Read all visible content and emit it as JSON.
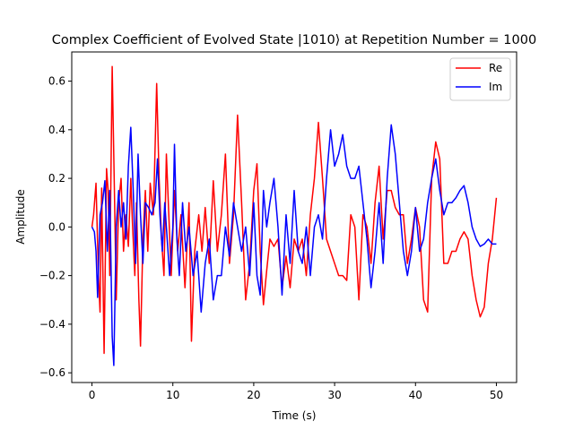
{
  "chart_data": {
    "type": "line",
    "title": "Complex Coefficient of Evolved State |1010⟩ at Repetition Number = 1000",
    "xlabel": "Time (s)",
    "ylabel": "Amplitude",
    "xlim": [
      -2.5,
      52.5
    ],
    "ylim": [
      -0.64,
      0.72
    ],
    "xticks": [
      0,
      10,
      20,
      30,
      40,
      50
    ],
    "xtick_labels": [
      "0",
      "10",
      "20",
      "30",
      "40",
      "50"
    ],
    "yticks": [
      -0.6,
      -0.4,
      -0.2,
      0.0,
      0.2,
      0.4,
      0.6
    ],
    "ytick_labels": [
      "−0.6",
      "−0.4",
      "−0.2",
      "0.0",
      "0.2",
      "0.4",
      "0.6"
    ],
    "grid": false,
    "legend_position": "upper right",
    "series": [
      {
        "name": "Re",
        "color": "#ff0000",
        "points": [
          [
            0,
            0.0
          ],
          [
            0.2,
            0.05
          ],
          [
            0.5,
            0.18
          ],
          [
            0.8,
            -0.2
          ],
          [
            1.0,
            -0.35
          ],
          [
            1.2,
            0.16
          ],
          [
            1.5,
            -0.52
          ],
          [
            1.8,
            0.24
          ],
          [
            2.0,
            0.15
          ],
          [
            2.2,
            -0.2
          ],
          [
            2.5,
            0.66
          ],
          [
            2.8,
            0.1
          ],
          [
            3.0,
            -0.3
          ],
          [
            3.3,
            0.1
          ],
          [
            3.6,
            0.2
          ],
          [
            3.9,
            -0.1
          ],
          [
            4.2,
            0.05
          ],
          [
            4.5,
            -0.08
          ],
          [
            4.8,
            0.2
          ],
          [
            5.0,
            0.02
          ],
          [
            5.3,
            -0.2
          ],
          [
            5.5,
            0.1
          ],
          [
            5.8,
            -0.3
          ],
          [
            6.0,
            -0.49
          ],
          [
            6.3,
            -0.05
          ],
          [
            6.6,
            0.15
          ],
          [
            6.9,
            -0.1
          ],
          [
            7.2,
            0.18
          ],
          [
            7.6,
            0.05
          ],
          [
            8.0,
            0.59
          ],
          [
            8.3,
            0.2
          ],
          [
            8.6,
            -0.05
          ],
          [
            8.9,
            -0.2
          ],
          [
            9.2,
            0.3
          ],
          [
            9.5,
            0.05
          ],
          [
            9.8,
            -0.2
          ],
          [
            10.2,
            0.15
          ],
          [
            10.6,
            -0.1
          ],
          [
            11.0,
            0.05
          ],
          [
            11.5,
            -0.25
          ],
          [
            12.0,
            0.1
          ],
          [
            12.3,
            -0.47
          ],
          [
            12.7,
            -0.1
          ],
          [
            13.2,
            0.05
          ],
          [
            13.6,
            -0.1
          ],
          [
            14.0,
            0.08
          ],
          [
            14.5,
            -0.15
          ],
          [
            15.0,
            0.19
          ],
          [
            15.5,
            -0.1
          ],
          [
            16.0,
            0.05
          ],
          [
            16.5,
            0.3
          ],
          [
            17.0,
            -0.15
          ],
          [
            17.5,
            0.05
          ],
          [
            18.0,
            0.46
          ],
          [
            18.5,
            0.1
          ],
          [
            19.0,
            -0.3
          ],
          [
            19.5,
            -0.15
          ],
          [
            20.0,
            0.15
          ],
          [
            20.4,
            0.26
          ],
          [
            20.8,
            -0.1
          ],
          [
            21.2,
            -0.32
          ],
          [
            21.6,
            -0.18
          ],
          [
            22.0,
            -0.05
          ],
          [
            22.5,
            -0.08
          ],
          [
            23.0,
            -0.05
          ],
          [
            23.5,
            -0.25
          ],
          [
            24.0,
            -0.12
          ],
          [
            24.5,
            -0.25
          ],
          [
            25.0,
            -0.05
          ],
          [
            25.5,
            -0.1
          ],
          [
            26.0,
            -0.05
          ],
          [
            26.5,
            -0.2
          ],
          [
            27.0,
            0.05
          ],
          [
            27.5,
            0.2
          ],
          [
            28.0,
            0.43
          ],
          [
            28.5,
            0.2
          ],
          [
            29.0,
            -0.05
          ],
          [
            29.5,
            -0.1
          ],
          [
            30.0,
            -0.15
          ],
          [
            30.5,
            -0.2
          ],
          [
            31.0,
            -0.2
          ],
          [
            31.5,
            -0.22
          ],
          [
            32.0,
            0.05
          ],
          [
            32.5,
            0.0
          ],
          [
            33.0,
            -0.3
          ],
          [
            33.5,
            0.05
          ],
          [
            34.0,
            0.0
          ],
          [
            34.5,
            -0.15
          ],
          [
            35.0,
            0.1
          ],
          [
            35.5,
            0.25
          ],
          [
            36.0,
            -0.05
          ],
          [
            36.5,
            0.15
          ],
          [
            37.0,
            0.15
          ],
          [
            37.5,
            0.08
          ],
          [
            38.0,
            0.05
          ],
          [
            38.5,
            0.05
          ],
          [
            39.0,
            -0.15
          ],
          [
            39.5,
            -0.05
          ],
          [
            40.0,
            0.08
          ],
          [
            40.5,
            0.0
          ],
          [
            41.0,
            -0.3
          ],
          [
            41.5,
            -0.35
          ],
          [
            42.0,
            0.2
          ],
          [
            42.5,
            0.35
          ],
          [
            43.0,
            0.28
          ],
          [
            43.5,
            -0.15
          ],
          [
            44.0,
            -0.15
          ],
          [
            44.5,
            -0.1
          ],
          [
            45.0,
            -0.1
          ],
          [
            45.5,
            -0.05
          ],
          [
            46.0,
            -0.02
          ],
          [
            46.5,
            -0.05
          ],
          [
            47.0,
            -0.2
          ],
          [
            47.5,
            -0.3
          ],
          [
            48.0,
            -0.37
          ],
          [
            48.5,
            -0.33
          ],
          [
            49.0,
            -0.15
          ],
          [
            49.5,
            -0.05
          ],
          [
            50.0,
            0.12
          ]
        ]
      },
      {
        "name": "Im",
        "color": "#0000ff",
        "points": [
          [
            0,
            0.0
          ],
          [
            0.3,
            -0.02
          ],
          [
            0.5,
            -0.1
          ],
          [
            0.7,
            -0.29
          ],
          [
            1.0,
            0.05
          ],
          [
            1.3,
            0.1
          ],
          [
            1.6,
            0.19
          ],
          [
            1.9,
            -0.1
          ],
          [
            2.2,
            0.15
          ],
          [
            2.5,
            -0.45
          ],
          [
            2.7,
            -0.57
          ],
          [
            3.0,
            0.0
          ],
          [
            3.3,
            0.15
          ],
          [
            3.6,
            0.0
          ],
          [
            3.9,
            0.1
          ],
          [
            4.2,
            -0.05
          ],
          [
            4.5,
            0.25
          ],
          [
            4.8,
            0.41
          ],
          [
            5.1,
            0.15
          ],
          [
            5.4,
            -0.15
          ],
          [
            5.7,
            0.3
          ],
          [
            6.0,
            0.05
          ],
          [
            6.3,
            -0.15
          ],
          [
            6.6,
            0.1
          ],
          [
            7.0,
            0.08
          ],
          [
            7.4,
            0.05
          ],
          [
            7.8,
            0.1
          ],
          [
            8.1,
            0.28
          ],
          [
            8.4,
            0.05
          ],
          [
            8.7,
            -0.1
          ],
          [
            9.0,
            0.1
          ],
          [
            9.3,
            -0.05
          ],
          [
            9.6,
            -0.2
          ],
          [
            10.0,
            0.0
          ],
          [
            10.2,
            0.34
          ],
          [
            10.5,
            -0.05
          ],
          [
            10.8,
            -0.2
          ],
          [
            11.2,
            0.1
          ],
          [
            11.6,
            -0.1
          ],
          [
            12.0,
            0.0
          ],
          [
            12.5,
            -0.2
          ],
          [
            13.0,
            -0.1
          ],
          [
            13.5,
            -0.35
          ],
          [
            14.0,
            -0.15
          ],
          [
            14.5,
            -0.05
          ],
          [
            15.0,
            -0.3
          ],
          [
            15.5,
            -0.2
          ],
          [
            16.0,
            -0.2
          ],
          [
            16.5,
            0.0
          ],
          [
            17.0,
            -0.12
          ],
          [
            17.5,
            0.1
          ],
          [
            18.0,
            0.0
          ],
          [
            18.5,
            -0.1
          ],
          [
            19.0,
            0.0
          ],
          [
            19.5,
            -0.2
          ],
          [
            20.0,
            0.1
          ],
          [
            20.4,
            -0.2
          ],
          [
            20.8,
            -0.28
          ],
          [
            21.2,
            0.15
          ],
          [
            21.6,
            0.0
          ],
          [
            22.0,
            0.1
          ],
          [
            22.5,
            0.2
          ],
          [
            23.0,
            0.0
          ],
          [
            23.5,
            -0.28
          ],
          [
            24.0,
            0.05
          ],
          [
            24.5,
            -0.15
          ],
          [
            25.0,
            0.15
          ],
          [
            25.5,
            -0.1
          ],
          [
            26.0,
            -0.15
          ],
          [
            26.5,
            0.0
          ],
          [
            27.0,
            -0.2
          ],
          [
            27.5,
            0.0
          ],
          [
            28.0,
            0.05
          ],
          [
            28.5,
            -0.05
          ],
          [
            29.0,
            0.2
          ],
          [
            29.5,
            0.4
          ],
          [
            30.0,
            0.25
          ],
          [
            30.5,
            0.3
          ],
          [
            31.0,
            0.38
          ],
          [
            31.5,
            0.25
          ],
          [
            32.0,
            0.2
          ],
          [
            32.5,
            0.2
          ],
          [
            33.0,
            0.25
          ],
          [
            33.5,
            0.1
          ],
          [
            34.0,
            -0.05
          ],
          [
            34.5,
            -0.25
          ],
          [
            35.0,
            -0.1
          ],
          [
            35.5,
            0.1
          ],
          [
            36.0,
            -0.15
          ],
          [
            36.5,
            0.2
          ],
          [
            37.0,
            0.42
          ],
          [
            37.5,
            0.3
          ],
          [
            38.0,
            0.1
          ],
          [
            38.5,
            -0.1
          ],
          [
            39.0,
            -0.2
          ],
          [
            39.5,
            -0.1
          ],
          [
            40.0,
            0.08
          ],
          [
            40.5,
            -0.1
          ],
          [
            41.0,
            -0.05
          ],
          [
            41.5,
            0.1
          ],
          [
            42.0,
            0.2
          ],
          [
            42.5,
            0.28
          ],
          [
            43.0,
            0.15
          ],
          [
            43.5,
            0.05
          ],
          [
            44.0,
            0.1
          ],
          [
            44.5,
            0.1
          ],
          [
            45.0,
            0.12
          ],
          [
            45.5,
            0.15
          ],
          [
            46.0,
            0.17
          ],
          [
            46.5,
            0.1
          ],
          [
            47.0,
            0.0
          ],
          [
            47.5,
            -0.05
          ],
          [
            48.0,
            -0.08
          ],
          [
            48.5,
            -0.07
          ],
          [
            49.0,
            -0.05
          ],
          [
            49.5,
            -0.07
          ],
          [
            50.0,
            -0.07
          ]
        ]
      }
    ]
  }
}
